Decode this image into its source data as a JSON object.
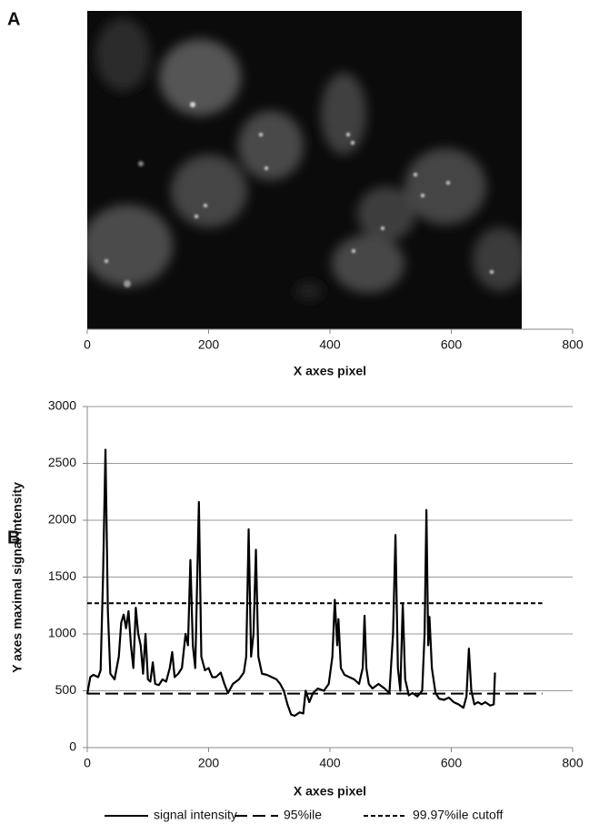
{
  "chart_data": [
    {
      "type": "image",
      "panel_label": "A",
      "x_label": "X axes pixel",
      "xlim": [
        0,
        800
      ],
      "xticks": [
        0,
        200,
        400,
        600,
        800
      ]
    },
    {
      "type": "line",
      "panel_label": "B",
      "x_label": "X axes pixel",
      "y_label": "Y axes maximal signal intensity",
      "xlim": [
        0,
        800
      ],
      "xticks": [
        0,
        200,
        400,
        600,
        800
      ],
      "ylim": [
        0,
        3000
      ],
      "yticks": [
        0,
        500,
        1000,
        1500,
        2000,
        2500,
        3000
      ],
      "grid": true,
      "series": [
        {
          "name": "signal intensity",
          "color": "#000000",
          "style": "solid",
          "x": [
            0,
            5,
            10,
            18,
            22,
            26,
            30,
            34,
            38,
            45,
            52,
            56,
            60,
            64,
            68,
            72,
            76,
            80,
            84,
            88,
            92,
            96,
            100,
            104,
            108,
            112,
            118,
            124,
            130,
            136,
            140,
            144,
            150,
            156,
            162,
            166,
            170,
            174,
            178,
            184,
            188,
            194,
            200,
            206,
            212,
            220,
            226,
            232,
            240,
            250,
            258,
            262,
            266,
            270,
            274,
            278,
            282,
            288,
            296,
            304,
            312,
            318,
            324,
            330,
            336,
            342,
            350,
            356,
            360,
            366,
            372,
            380,
            390,
            398,
            404,
            408,
            412,
            414,
            418,
            424,
            432,
            440,
            448,
            454,
            457,
            460,
            464,
            470,
            480,
            490,
            498,
            504,
            508,
            512,
            516,
            520,
            524,
            530,
            536,
            544,
            552,
            556,
            559,
            562,
            564,
            568,
            574,
            580,
            588,
            596,
            604,
            612,
            620,
            625,
            629,
            633,
            638,
            644,
            650,
            656,
            664,
            670,
            672
          ],
          "values": [
            470,
            620,
            640,
            620,
            680,
            1500,
            2620,
            1200,
            650,
            600,
            800,
            1100,
            1170,
            1050,
            1200,
            900,
            700,
            1230,
            1000,
            900,
            650,
            1000,
            600,
            580,
            750,
            560,
            550,
            600,
            580,
            700,
            840,
            620,
            650,
            700,
            1000,
            900,
            1650,
            900,
            700,
            2160,
            800,
            680,
            700,
            620,
            620,
            660,
            560,
            480,
            560,
            600,
            660,
            800,
            1920,
            800,
            1000,
            1740,
            800,
            650,
            640,
            620,
            600,
            560,
            500,
            380,
            290,
            280,
            310,
            300,
            500,
            400,
            480,
            520,
            500,
            560,
            800,
            1300,
            900,
            1130,
            700,
            640,
            620,
            600,
            560,
            700,
            1160,
            700,
            560,
            520,
            560,
            520,
            480,
            1000,
            1870,
            700,
            500,
            1270,
            600,
            460,
            480,
            450,
            500,
            1000,
            2090,
            900,
            1150,
            700,
            480,
            430,
            420,
            440,
            400,
            380,
            350,
            450,
            870,
            500,
            380,
            400,
            380,
            400,
            370,
            380,
            660
          ]
        },
        {
          "name": "95%ile",
          "color": "#000000",
          "style": "dashed",
          "x": [
            0,
            750
          ],
          "values": [
            475,
            475
          ]
        },
        {
          "name": "99.97%ile cutoff",
          "color": "#000000",
          "style": "dotted",
          "x": [
            0,
            750
          ],
          "values": [
            1270,
            1270
          ]
        }
      ]
    }
  ]
}
